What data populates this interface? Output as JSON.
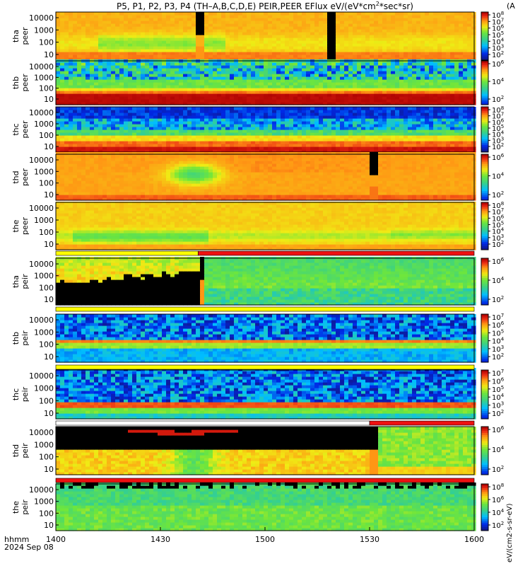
{
  "title_parts": {
    "main": "P5, P1, P2, P3, P4 (TH–A,B,C,D,E) PEIR,PEER EFlux eV/(eV*cm",
    "sup": "2",
    "tail": "*sec*sr)"
  },
  "colorbar_unit_label": "eV/(cm2-s-sr-eV)",
  "colorbar_partial_label": "(A",
  "time_axis": {
    "row_label": "hhmm",
    "date_label": "2024 Sep 08",
    "ticks": [
      "1400",
      "1430",
      "1500",
      "1530",
      "1600"
    ]
  },
  "panels": [
    {
      "id": "tha-peer",
      "ylabel": [
        "tha",
        "peer"
      ],
      "yticks": [
        "10000",
        "1000",
        "100",
        "10"
      ],
      "cbar_ticks": [
        "10^8",
        "10^7",
        "10^6",
        "10^5",
        "10^4",
        "10^3",
        "10^2"
      ],
      "pattern": "peer-a"
    },
    {
      "id": "thb-peer",
      "ylabel": [
        "thb",
        "peer"
      ],
      "yticks": [
        "10000",
        "1000",
        "100",
        "10"
      ],
      "cbar_ticks": [
        "10^6",
        "10^4",
        "10^2"
      ],
      "pattern": "peer-b"
    },
    {
      "id": "thc-peer",
      "ylabel": [
        "thc",
        "peer"
      ],
      "yticks": [
        "10000",
        "1000",
        "100",
        "10"
      ],
      "cbar_ticks": [
        "10^8",
        "10^7",
        "10^6",
        "10^5",
        "10^4",
        "10^3",
        "10^2"
      ],
      "pattern": "peer-c"
    },
    {
      "id": "thd-peer",
      "ylabel": [
        "thd",
        "peer"
      ],
      "yticks": [
        "10000",
        "1000",
        "100",
        "10"
      ],
      "cbar_ticks": [
        "10^6",
        "10^4",
        "10^2"
      ],
      "pattern": "peer-d"
    },
    {
      "id": "the-peer",
      "ylabel": [
        "the",
        "peer"
      ],
      "yticks": [
        "10000",
        "1000",
        "100",
        "10"
      ],
      "cbar_ticks": [
        "10^8",
        "10^7",
        "10^6",
        "10^5",
        "10^4",
        "10^3",
        "10^2"
      ],
      "pattern": "peer-e"
    },
    {
      "id": "tha-peir",
      "ylabel": [
        "tha",
        "peir"
      ],
      "yticks": [
        "10000",
        "1000",
        "100",
        "10"
      ],
      "cbar_ticks": [
        "10^6",
        "10^4",
        "10^2"
      ],
      "pattern": "peir-a"
    },
    {
      "id": "thb-peir",
      "ylabel": [
        "thb",
        "peir"
      ],
      "yticks": [
        "10000",
        "1000",
        "100",
        "10"
      ],
      "cbar_ticks": [
        "10^7",
        "10^6",
        "10^5",
        "10^4",
        "10^3",
        "10^2"
      ],
      "pattern": "peir-b"
    },
    {
      "id": "thc-peir",
      "ylabel": [
        "thc",
        "peir"
      ],
      "yticks": [
        "10000",
        "1000",
        "100",
        "10"
      ],
      "cbar_ticks": [
        "10^7",
        "10^6",
        "10^5",
        "10^4",
        "10^3",
        "10^2"
      ],
      "pattern": "peir-c"
    },
    {
      "id": "thd-peir",
      "ylabel": [
        "thd",
        "peir"
      ],
      "yticks": [
        "10000",
        "1000",
        "100",
        "10"
      ],
      "cbar_ticks": [
        "10^6",
        "10^4",
        "10^2"
      ],
      "pattern": "peir-d"
    },
    {
      "id": "the-peir",
      "ylabel": [
        "the",
        "peir"
      ],
      "yticks": [
        "10000",
        "1000",
        "100",
        "10"
      ],
      "cbar_ticks": [
        "10^8",
        "10^6",
        "10^4",
        "10^2"
      ],
      "pattern": "peir-e"
    }
  ],
  "colors": {
    "flag_red": "#ee1111",
    "flag_yellow": "#ffff00",
    "gap": "#000000"
  },
  "chart_data": {
    "type": "heatmap",
    "description_kind": "energy-time spectrograms",
    "x_range_hhmm": [
      "1400",
      "1600"
    ],
    "y_scale": "log",
    "y_range_eV": [
      5,
      30000
    ],
    "colorbar_scale": "log",
    "panels": [
      "tha peer",
      "thb peer",
      "thc peer",
      "thd peer",
      "the peer",
      "tha peir",
      "thb peir",
      "thc peir",
      "thd peir",
      "the peir"
    ]
  }
}
